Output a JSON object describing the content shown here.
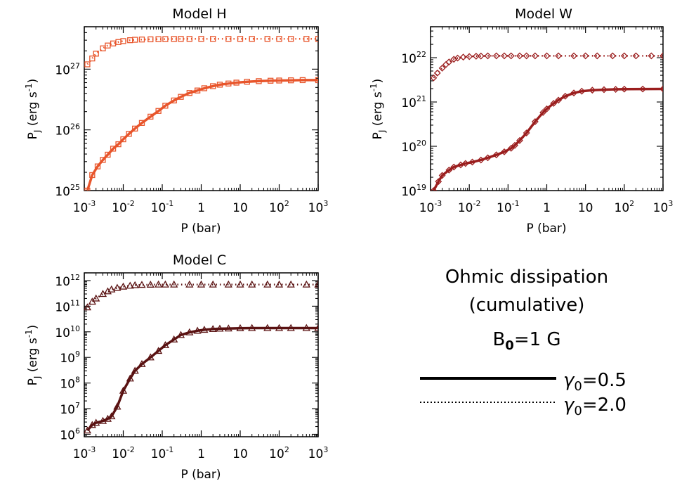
{
  "chart_data": [
    {
      "type": "line",
      "title": "Model H",
      "xlabel": "P (bar)",
      "ylabel": "P_J (erg s^-1)",
      "xscale": "log",
      "yscale": "log",
      "xlim": [
        0.001,
        1000
      ],
      "ylim": [
        1e+25,
        5e+27
      ],
      "xticks": [
        "10^-3",
        "10^-2",
        "10^-1",
        "1",
        "10",
        "10^2",
        "10^3"
      ],
      "yticks": [
        "10^25",
        "10^26",
        "10^27"
      ],
      "color": "#e8552b",
      "marker": "square",
      "series": [
        {
          "name": "γ0=0.5",
          "style": "solid",
          "x": [
            0.0012,
            0.0016,
            0.0022,
            0.003,
            0.004,
            0.0055,
            0.0075,
            0.01,
            0.014,
            0.02,
            0.03,
            0.05,
            0.08,
            0.12,
            0.2,
            0.3,
            0.5,
            0.8,
            1.2,
            2,
            3,
            5,
            8,
            15,
            30,
            60,
            100,
            200,
            400,
            1000
          ],
          "y": [
            1e+25,
            1.8e+25,
            2.5e+25,
            3.2e+25,
            3.9e+25,
            4.9e+25,
            5.8e+25,
            7e+25,
            8.6e+25,
            1.05e+26,
            1.3e+26,
            1.65e+26,
            2.05e+26,
            2.5e+26,
            3.05e+26,
            3.5e+26,
            4.05e+26,
            4.45e+26,
            4.85e+26,
            5.25e+26,
            5.55e+26,
            5.8e+26,
            6e+26,
            6.2e+26,
            6.35e+26,
            6.45e+26,
            6.5e+26,
            6.55e+26,
            6.6e+26,
            6.6e+26
          ]
        },
        {
          "name": "γ0=2.0",
          "style": "dotted",
          "x": [
            0.0012,
            0.0016,
            0.002,
            0.003,
            0.004,
            0.0055,
            0.0075,
            0.01,
            0.015,
            0.02,
            0.03,
            0.05,
            0.08,
            0.12,
            0.2,
            0.3,
            0.5,
            1,
            2,
            5,
            10,
            20,
            50,
            100,
            200,
            500,
            1000
          ],
          "y": [
            1.2e+27,
            1.5e+27,
            1.8e+27,
            2.2e+27,
            2.45e+27,
            2.65e+27,
            2.8e+27,
            2.9e+27,
            3e+27,
            3.05e+27,
            3.08e+27,
            3.1e+27,
            3.12e+27,
            3.13e+27,
            3.14e+27,
            3.15e+27,
            3.15e+27,
            3.15e+27,
            3.15e+27,
            3.15e+27,
            3.15e+27,
            3.15e+27,
            3.15e+27,
            3.15e+27,
            3.15e+27,
            3.15e+27,
            3.15e+27
          ]
        }
      ]
    },
    {
      "type": "line",
      "title": "Model W",
      "xlabel": "P (bar)",
      "ylabel": "P_J (erg s^-1)",
      "xscale": "log",
      "yscale": "log",
      "xlim": [
        0.001,
        1000
      ],
      "ylim": [
        1e+19,
        5e+22
      ],
      "xticks": [
        "10^-3",
        "10^-2",
        "10^-1",
        "1",
        "10",
        "10^2",
        "10^3"
      ],
      "yticks": [
        "10^19",
        "10^20",
        "10^21",
        "10^22"
      ],
      "color": "#9b1e1e",
      "marker": "diamond",
      "series": [
        {
          "name": "γ0=0.5",
          "style": "solid",
          "x": [
            0.0012,
            0.0016,
            0.002,
            0.003,
            0.004,
            0.006,
            0.008,
            0.012,
            0.02,
            0.03,
            0.05,
            0.08,
            0.12,
            0.15,
            0.2,
            0.3,
            0.5,
            0.8,
            1,
            1.5,
            2,
            3,
            5,
            8,
            15,
            30,
            60,
            100,
            300,
            1000
          ],
          "y": [
            1e+19,
            1.6e+19,
            2.2e+19,
            2.9e+19,
            3.4e+19,
            3.8e+19,
            4.1e+19,
            4.4e+19,
            4.9e+19,
            5.5e+19,
            6.4e+19,
            7.5e+19,
            9e+19,
            1.05e+20,
            1.35e+20,
            2e+20,
            3.6e+20,
            5.8e+20,
            7e+20,
            9.3e+20,
            1.1e+21,
            1.35e+21,
            1.6e+21,
            1.75e+21,
            1.85e+21,
            1.9e+21,
            1.93e+21,
            1.95e+21,
            1.96e+21,
            1.97e+21
          ]
        },
        {
          "name": "γ0=2.0",
          "style": "dotted",
          "x": [
            0.0012,
            0.0015,
            0.002,
            0.0025,
            0.003,
            0.004,
            0.005,
            0.007,
            0.01,
            0.015,
            0.02,
            0.03,
            0.05,
            0.08,
            0.12,
            0.2,
            0.3,
            0.5,
            1,
            2,
            5,
            10,
            20,
            50,
            100,
            200,
            500,
            1000
          ],
          "y": [
            3.5e+21,
            4.5e+21,
            5.8e+21,
            7e+21,
            8e+21,
            9.2e+21,
            9.8e+21,
            1.03e+22,
            1.06e+22,
            1.08e+22,
            1.09e+22,
            1.1e+22,
            1.1e+22,
            1.1e+22,
            1.1e+22,
            1.1e+22,
            1.1e+22,
            1.1e+22,
            1.1e+22,
            1.1e+22,
            1.1e+22,
            1.1e+22,
            1.1e+22,
            1.1e+22,
            1.1e+22,
            1.1e+22,
            1.1e+22,
            1.1e+22
          ]
        }
      ]
    },
    {
      "type": "line",
      "title": "Model C",
      "xlabel": "P (bar)",
      "ylabel": "P_J (erg s^-1)",
      "xscale": "log",
      "yscale": "log",
      "xlim": [
        0.001,
        1000
      ],
      "ylim": [
        800000.0,
        2000000000000.0
      ],
      "xticks": [
        "10^-3",
        "10^-2",
        "10^-1",
        "1",
        "10",
        "10^2",
        "10^3"
      ],
      "yticks": [
        "10^6",
        "10^7",
        "10^8",
        "10^9",
        "10^10",
        "10^11",
        "10^12"
      ],
      "color": "#5a1212",
      "marker": "triangle",
      "series": [
        {
          "name": "γ0=0.5",
          "style": "solid",
          "x": [
            0.0012,
            0.0016,
            0.002,
            0.003,
            0.004,
            0.005,
            0.007,
            0.01,
            0.015,
            0.02,
            0.03,
            0.05,
            0.08,
            0.12,
            0.2,
            0.3,
            0.5,
            0.8,
            1.2,
            2,
            3,
            5,
            10,
            20,
            50,
            100,
            200,
            500,
            1000
          ],
          "y": [
            1400000.0,
            2300000.0,
            2800000.0,
            3300000.0,
            4000000.0,
            5000000.0,
            12000000.0,
            50000000.0,
            150000000.0,
            300000000.0,
            550000000.0,
            1000000000.0,
            1800000000.0,
            3000000000.0,
            5000000000.0,
            7500000000.0,
            9500000000.0,
            11000000000.0,
            12000000000.0,
            12800000000.0,
            13200000000.0,
            13500000000.0,
            13800000000.0,
            14000000000.0,
            14000000000.0,
            14000000000.0,
            14000000000.0,
            14000000000.0,
            14000000000.0
          ]
        },
        {
          "name": "γ0=2.0",
          "style": "dotted",
          "x": [
            0.0012,
            0.0016,
            0.002,
            0.003,
            0.004,
            0.005,
            0.007,
            0.01,
            0.015,
            0.02,
            0.03,
            0.05,
            0.08,
            0.12,
            0.2,
            0.5,
            1,
            2,
            5,
            10,
            20,
            50,
            100,
            200,
            500,
            1000
          ],
          "y": [
            90000000000.0,
            150000000000.0,
            200000000000.0,
            300000000000.0,
            380000000000.0,
            450000000000.0,
            520000000000.0,
            580000000000.0,
            630000000000.0,
            660000000000.0,
            680000000000.0,
            690000000000.0,
            700000000000.0,
            700000000000.0,
            700000000000.0,
            700000000000.0,
            700000000000.0,
            700000000000.0,
            700000000000.0,
            700000000000.0,
            700000000000.0,
            700000000000.0,
            700000000000.0,
            700000000000.0,
            700000000000.0,
            700000000000.0
          ]
        }
      ]
    }
  ],
  "legend": {
    "title_line1": "Ohmic dissipation",
    "title_line2": "(cumulative)",
    "b0_base": "B",
    "b0_sub": "0",
    "b0_rest": "=1 G",
    "items": [
      {
        "symbol": "γ",
        "sub": "0",
        "rest": "=0.5",
        "style": "solid"
      },
      {
        "symbol": "γ",
        "sub": "0",
        "rest": "=2.0",
        "style": "dotted"
      }
    ]
  },
  "ylabel_parts": {
    "base": "P",
    "sub": "J",
    "unit_open": " (erg s",
    "unit_sup": "-1",
    "unit_close": ")"
  }
}
